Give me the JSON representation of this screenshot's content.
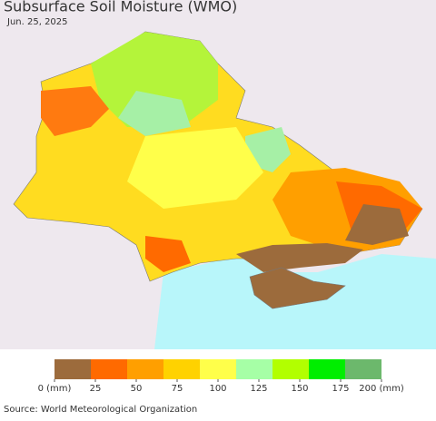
{
  "title": "Subsurface Soil Moisture (WMO)",
  "date": "Jun. 25, 2025",
  "legend": {
    "colors": [
      "#9c6b3c",
      "#ff6a00",
      "#ff9f00",
      "#ffd200",
      "#ffff4a",
      "#a6ffa6",
      "#b2ff00",
      "#00ee00",
      "#6cb86c"
    ],
    "ticks": [
      {
        "value": 0,
        "label": "0 (mm)"
      },
      25,
      50,
      75,
      100,
      125,
      150,
      175,
      {
        "value": 200,
        "label": "200 (mm)"
      }
    ]
  },
  "source": "Source: World Meteorological Organization"
}
